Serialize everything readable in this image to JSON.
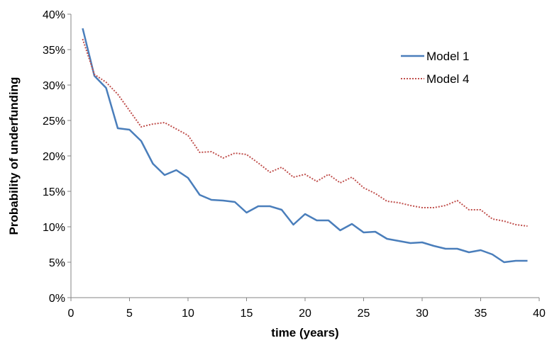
{
  "chart_data": {
    "type": "line",
    "xlabel": "time (years)",
    "ylabel": "Probability of underfunding",
    "xlim": [
      0,
      40
    ],
    "ylim": [
      0,
      40
    ],
    "x_ticks": [
      "0",
      "5",
      "10",
      "15",
      "20",
      "25",
      "30",
      "35",
      "40"
    ],
    "y_ticks": [
      "0%",
      "5%",
      "10%",
      "15%",
      "20%",
      "25%",
      "30%",
      "35%",
      "40%"
    ],
    "grid": false,
    "legend": "right",
    "x": [
      1,
      2,
      3,
      4,
      5,
      6,
      7,
      8,
      9,
      10,
      11,
      12,
      13,
      14,
      15,
      16,
      17,
      18,
      19,
      20,
      21,
      22,
      23,
      24,
      25,
      26,
      27,
      28,
      29,
      30,
      31,
      32,
      33,
      34,
      35,
      36,
      37,
      38,
      39
    ],
    "series": [
      {
        "name": "Model 1",
        "color": "#4a7ebb",
        "style": "solid",
        "values": [
          38.0,
          31.3,
          29.6,
          23.9,
          23.7,
          22.1,
          18.9,
          17.3,
          18.0,
          16.9,
          14.5,
          13.8,
          13.7,
          13.5,
          12.0,
          12.9,
          12.9,
          12.4,
          10.3,
          11.8,
          10.9,
          10.9,
          9.5,
          10.4,
          9.2,
          9.3,
          8.3,
          8.0,
          7.7,
          7.8,
          7.3,
          6.9,
          6.9,
          6.4,
          6.7,
          6.1,
          5.0,
          5.2,
          5.2
        ]
      },
      {
        "name": "Model 4",
        "color": "#c0504d",
        "style": "dotted",
        "values": [
          36.5,
          31.5,
          30.4,
          28.7,
          26.4,
          24.1,
          24.5,
          24.7,
          23.8,
          22.9,
          20.5,
          20.6,
          19.7,
          20.4,
          20.2,
          19.0,
          17.7,
          18.4,
          17.0,
          17.4,
          16.4,
          17.4,
          16.2,
          17.0,
          15.5,
          14.7,
          13.6,
          13.4,
          13.0,
          12.7,
          12.7,
          13.0,
          13.7,
          12.4,
          12.4,
          11.1,
          10.8,
          10.3,
          10.1
        ]
      }
    ]
  }
}
